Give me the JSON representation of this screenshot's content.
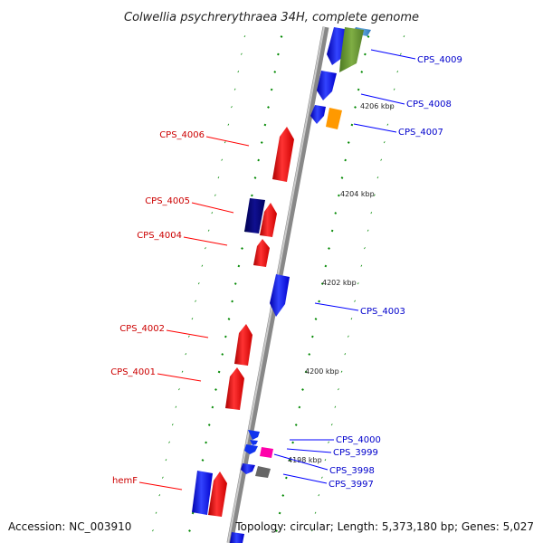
{
  "title": "Colwellia psychrerythraea 34H, complete genome",
  "footer": {
    "accession": "Accession: NC_003910",
    "topology": "Topology: circular; Length: 5,373,180 bp; Genes: 5,027"
  },
  "kbp_labels": [
    "4206 kbp",
    "4204 kbp",
    "4202 kbp",
    "4200 kbp",
    "4198 kbp"
  ],
  "genes_reverse": [
    "CPS_4006",
    "CPS_4005",
    "CPS_4004",
    "CPS_4002",
    "CPS_4001",
    "hemF"
  ],
  "genes_forward": [
    "CPS_4009",
    "CPS_4008",
    "CPS_4007",
    "CPS_4003",
    "CPS_4000",
    "CPS_3999",
    "CPS_3998",
    "CPS_3997"
  ],
  "colors": {
    "reverse": "#ff0000",
    "forward": "#0000ff",
    "dark_blue": "#000080",
    "olive": "#669933",
    "orange": "#ff9900",
    "magenta": "#ff00aa",
    "gray": "#666666",
    "light_blue": "#3388cc",
    "tick": "#008800",
    "backbone": "#888888",
    "label_reverse": "#cc0000",
    "label_forward": "#0000cc"
  }
}
